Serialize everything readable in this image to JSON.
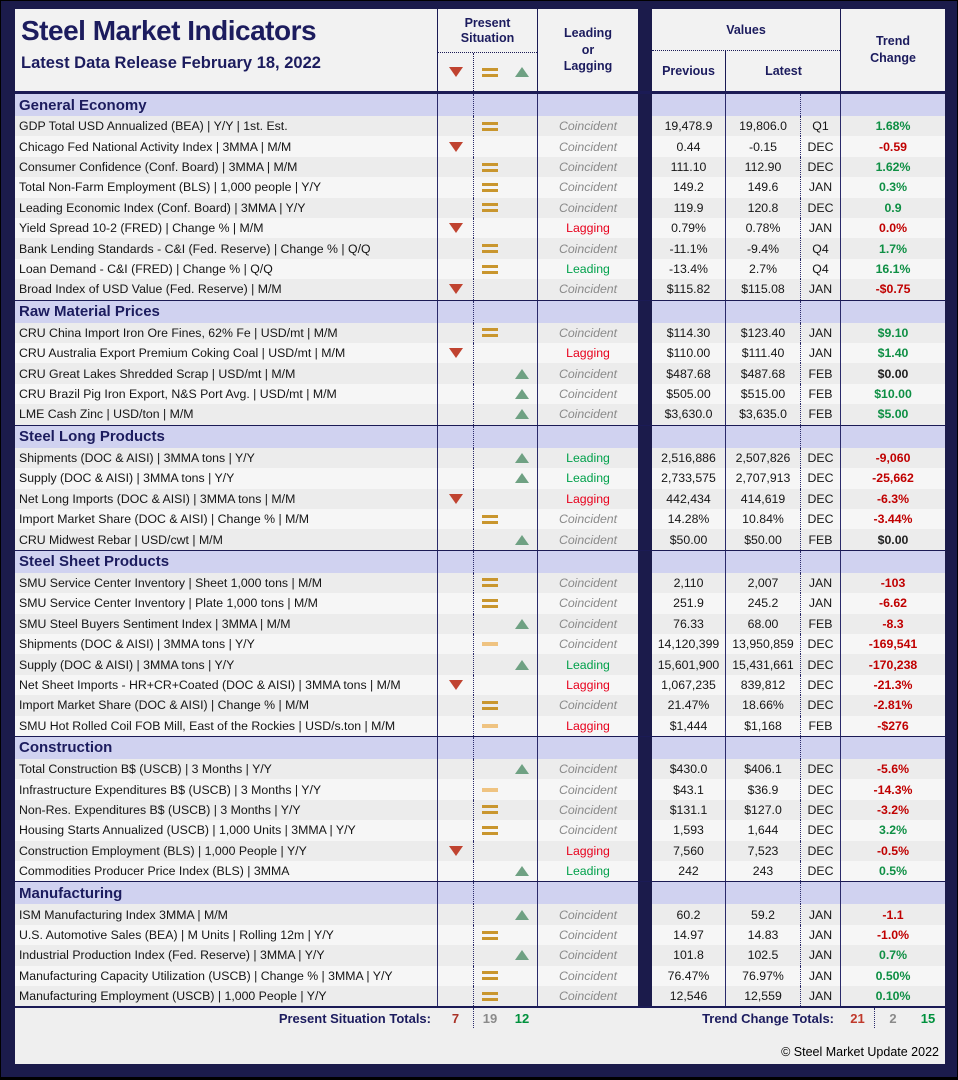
{
  "header": {
    "title": "Steel Market Indicators",
    "subtitle": "Latest Data Release February 18, 2022",
    "col_present_situation": "Present Situation",
    "col_leadlag_lines": [
      "Leading",
      "or",
      "Lagging"
    ],
    "col_values": "Values",
    "col_previous": "Previous",
    "col_latest": "Latest",
    "col_trend_lines": [
      "Trend",
      "Change"
    ],
    "symbol_icons": [
      "down-triangle-icon",
      "equals-icon",
      "up-triangle-icon"
    ]
  },
  "colors": {
    "navy": "#1B1B4B",
    "section_band": "#D0D2F0",
    "down_triangle": "#C04330",
    "up_triangle": "#6FA183",
    "equals_icon": "#C9962E",
    "dash_icon": "#EFC381",
    "coincident_text": "#8A8A8A",
    "leading_text": "#00A14B",
    "lagging_text": "#E8001C",
    "trend_positive": "#0E8F44",
    "trend_negative": "#C00000"
  },
  "sections": [
    {
      "title": "General Economy",
      "rows": [
        {
          "name": "GDP Total USD Annualized (BEA) | Y/Y | 1st. Est.",
          "situation": "equals",
          "leadlag": "Coincident",
          "previous": "19,478.9",
          "latest": "19,806.0",
          "period": "Q1",
          "trend": "1.68%",
          "trend_color": "green"
        },
        {
          "name": "Chicago Fed National Activity Index | 3MMA | M/M",
          "situation": "down",
          "leadlag": "Coincident",
          "previous": "0.44",
          "latest": "-0.15",
          "period": "DEC",
          "trend": "-0.59",
          "trend_color": "red"
        },
        {
          "name": "Consumer Confidence (Conf. Board) | 3MMA | M/M",
          "situation": "equals",
          "leadlag": "Coincident",
          "previous": "111.10",
          "latest": "112.90",
          "period": "DEC",
          "trend": "1.62%",
          "trend_color": "green"
        },
        {
          "name": "Total Non-Farm Employment (BLS) | 1,000 people | Y/Y",
          "situation": "equals",
          "leadlag": "Coincident",
          "previous": "149.2",
          "latest": "149.6",
          "period": "JAN",
          "trend": "0.3%",
          "trend_color": "green"
        },
        {
          "name": "Leading Economic Index (Conf. Board) | 3MMA | Y/Y",
          "situation": "equals",
          "leadlag": "Coincident",
          "previous": "119.9",
          "latest": "120.8",
          "period": "DEC",
          "trend": "0.9",
          "trend_color": "green"
        },
        {
          "name": "Yield Spread 10-2 (FRED) | Change % | M/M",
          "situation": "down",
          "leadlag": "Lagging",
          "previous": "0.79%",
          "latest": "0.78%",
          "period": "JAN",
          "trend": "0.0%",
          "trend_color": "red"
        },
        {
          "name": "Bank Lending Standards - C&I (Fed. Reserve) | Change % | Q/Q",
          "situation": "equals",
          "leadlag": "Coincident",
          "previous": "-11.1%",
          "latest": "-9.4%",
          "period": "Q4",
          "trend": "1.7%",
          "trend_color": "green"
        },
        {
          "name": "Loan Demand - C&I (FRED) | Change % | Q/Q",
          "situation": "equals",
          "leadlag": "Leading",
          "previous": "-13.4%",
          "latest": "2.7%",
          "period": "Q4",
          "trend": "16.1%",
          "trend_color": "green"
        },
        {
          "name": "Broad Index of USD Value (Fed. Reserve) | M/M",
          "situation": "down",
          "leadlag": "Coincident",
          "previous": "$115.82",
          "latest": "$115.08",
          "period": "JAN",
          "trend": "-$0.75",
          "trend_color": "red"
        }
      ]
    },
    {
      "title": "Raw Material Prices",
      "rows": [
        {
          "name": "CRU China Import Iron Ore Fines, 62% Fe | USD/mt | M/M",
          "situation": "equals",
          "leadlag": "Coincident",
          "previous": "$114.30",
          "latest": "$123.40",
          "period": "JAN",
          "trend": "$9.10",
          "trend_color": "green"
        },
        {
          "name": "CRU Australia Export Premium Coking Coal | USD/mt | M/M",
          "situation": "down",
          "leadlag": "Lagging",
          "previous": "$110.00",
          "latest": "$111.40",
          "period": "JAN",
          "trend": "$1.40",
          "trend_color": "green"
        },
        {
          "name": "CRU Great Lakes Shredded Scrap | USD/mt | M/M",
          "situation": "up",
          "leadlag": "Coincident",
          "previous": "$487.68",
          "latest": "$487.68",
          "period": "FEB",
          "trend": "$0.00",
          "trend_color": "black"
        },
        {
          "name": "CRU Brazil Pig Iron Export, N&S Port Avg. | USD/mt | M/M",
          "situation": "up",
          "leadlag": "Coincident",
          "previous": "$505.00",
          "latest": "$515.00",
          "period": "FEB",
          "trend": "$10.00",
          "trend_color": "green"
        },
        {
          "name": "LME Cash Zinc | USD/ton | M/M",
          "situation": "up",
          "leadlag": "Coincident",
          "previous": "$3,630.0",
          "latest": "$3,635.0",
          "period": "FEB",
          "trend": "$5.00",
          "trend_color": "green"
        }
      ]
    },
    {
      "title": "Steel Long Products",
      "rows": [
        {
          "name": "Shipments (DOC & AISI) | 3MMA tons | Y/Y",
          "situation": "up",
          "leadlag": "Leading",
          "previous": "2,516,886",
          "latest": "2,507,826",
          "period": "DEC",
          "trend": "-9,060",
          "trend_color": "red"
        },
        {
          "name": "Supply (DOC & AISI) | 3MMA tons | Y/Y",
          "situation": "up",
          "leadlag": "Leading",
          "previous": "2,733,575",
          "latest": "2,707,913",
          "period": "DEC",
          "trend": "-25,662",
          "trend_color": "red"
        },
        {
          "name": "Net Long Imports (DOC & AISI) | 3MMA tons | M/M",
          "situation": "down",
          "leadlag": "Lagging",
          "previous": "442,434",
          "latest": "414,619",
          "period": "DEC",
          "trend": "-6.3%",
          "trend_color": "red"
        },
        {
          "name": "Import Market Share (DOC & AISI) | Change % | M/M",
          "situation": "equals",
          "leadlag": "Coincident",
          "previous": "14.28%",
          "latest": "10.84%",
          "period": "DEC",
          "trend": "-3.44%",
          "trend_color": "red"
        },
        {
          "name": "CRU Midwest Rebar | USD/cwt | M/M",
          "situation": "up",
          "leadlag": "Coincident",
          "previous": "$50.00",
          "latest": "$50.00",
          "period": "FEB",
          "trend": "$0.00",
          "trend_color": "black"
        }
      ]
    },
    {
      "title": "Steel Sheet Products",
      "rows": [
        {
          "name": "SMU Service Center Inventory | Sheet 1,000 tons | M/M",
          "situation": "equals",
          "leadlag": "Coincident",
          "previous": "2,110",
          "latest": "2,007",
          "period": "JAN",
          "trend": "-103",
          "trend_color": "red"
        },
        {
          "name": "SMU Service Center Inventory | Plate 1,000 tons | M/M",
          "situation": "equals",
          "leadlag": "Coincident",
          "previous": "251.9",
          "latest": "245.2",
          "period": "JAN",
          "trend": "-6.62",
          "trend_color": "red"
        },
        {
          "name": "SMU Steel Buyers Sentiment Index | 3MMA | M/M",
          "situation": "up",
          "leadlag": "Coincident",
          "previous": "76.33",
          "latest": "68.00",
          "period": "FEB",
          "trend": "-8.3",
          "trend_color": "red"
        },
        {
          "name": "Shipments (DOC & AISI) | 3MMA tons | Y/Y",
          "situation": "dash",
          "leadlag": "Coincident",
          "previous": "14,120,399",
          "latest": "13,950,859",
          "period": "DEC",
          "trend": "-169,541",
          "trend_color": "red"
        },
        {
          "name": "Supply (DOC & AISI) | 3MMA tons | Y/Y",
          "situation": "up",
          "leadlag": "Leading",
          "previous": "15,601,900",
          "latest": "15,431,661",
          "period": "DEC",
          "trend": "-170,238",
          "trend_color": "red"
        },
        {
          "name": "Net Sheet Imports - HR+CR+Coated (DOC & AISI) | 3MMA tons | M/M",
          "situation": "down",
          "leadlag": "Lagging",
          "previous": "1,067,235",
          "latest": "839,812",
          "period": "DEC",
          "trend": "-21.3%",
          "trend_color": "red"
        },
        {
          "name": "Import Market Share (DOC & AISI) | Change % | M/M",
          "situation": "equals",
          "leadlag": "Coincident",
          "previous": "21.47%",
          "latest": "18.66%",
          "period": "DEC",
          "trend": "-2.81%",
          "trend_color": "red"
        },
        {
          "name": "SMU Hot Rolled Coil FOB Mill, East of the Rockies | USD/s.ton | M/M",
          "situation": "dash",
          "leadlag": "Lagging",
          "previous": "$1,444",
          "latest": "$1,168",
          "period": "FEB",
          "trend": "-$276",
          "trend_color": "red"
        }
      ]
    },
    {
      "title": "Construction",
      "rows": [
        {
          "name": "Total Construction B$ (USCB) | 3 Months | Y/Y",
          "situation": "up",
          "leadlag": "Coincident",
          "previous": "$430.0",
          "latest": "$406.1",
          "period": "DEC",
          "trend": "-5.6%",
          "trend_color": "red"
        },
        {
          "name": "Infrastructure Expenditures B$ (USCB) | 3 Months | Y/Y",
          "situation": "dash",
          "leadlag": "Coincident",
          "previous": "$43.1",
          "latest": "$36.9",
          "period": "DEC",
          "trend": "-14.3%",
          "trend_color": "red"
        },
        {
          "name": "Non-Res. Expenditures B$ (USCB) | 3 Months | Y/Y",
          "situation": "equals",
          "leadlag": "Coincident",
          "previous": "$131.1",
          "latest": "$127.0",
          "period": "DEC",
          "trend": "-3.2%",
          "trend_color": "red"
        },
        {
          "name": "Housing Starts Annualized (USCB) | 1,000 Units | 3MMA | Y/Y",
          "situation": "equals",
          "leadlag": "Coincident",
          "previous": "1,593",
          "latest": "1,644",
          "period": "DEC",
          "trend": "3.2%",
          "trend_color": "green"
        },
        {
          "name": "Construction Employment (BLS) | 1,000 People | Y/Y",
          "situation": "down",
          "leadlag": "Lagging",
          "previous": "7,560",
          "latest": "7,523",
          "period": "DEC",
          "trend": "-0.5%",
          "trend_color": "red"
        },
        {
          "name": "Commodities Producer Price Index (BLS) | 3MMA",
          "situation": "up",
          "leadlag": "Leading",
          "previous": "242",
          "latest": "243",
          "period": "DEC",
          "trend": "0.5%",
          "trend_color": "green"
        }
      ]
    },
    {
      "title": "Manufacturing",
      "rows": [
        {
          "name": "ISM Manufacturing Index 3MMA | M/M",
          "situation": "up",
          "leadlag": "Coincident",
          "previous": "60.2",
          "latest": "59.2",
          "period": "JAN",
          "trend": "-1.1",
          "trend_color": "red"
        },
        {
          "name": "U.S. Automotive Sales (BEA) | M Units | Rolling 12m | Y/Y",
          "situation": "equals",
          "leadlag": "Coincident",
          "previous": "14.97",
          "latest": "14.83",
          "period": "JAN",
          "trend": "-1.0%",
          "trend_color": "red"
        },
        {
          "name": "Industrial Production Index (Fed. Reserve) | 3MMA | Y/Y",
          "situation": "up",
          "leadlag": "Coincident",
          "previous": "101.8",
          "latest": "102.5",
          "period": "JAN",
          "trend": "0.7%",
          "trend_color": "green"
        },
        {
          "name": "Manufacturing Capacity Utilization (USCB) | Change % | 3MMA | Y/Y",
          "situation": "equals",
          "leadlag": "Coincident",
          "previous": "76.47%",
          "latest": "76.97%",
          "period": "JAN",
          "trend": "0.50%",
          "trend_color": "green"
        },
        {
          "name": "Manufacturing Employment (USCB) | 1,000 People | Y/Y",
          "situation": "equals",
          "leadlag": "Coincident",
          "previous": "12,546",
          "latest": "12,559",
          "period": "JAN",
          "trend": "0.10%",
          "trend_color": "green"
        }
      ]
    }
  ],
  "footer": {
    "present_situation_totals_label": "Present Situation Totals:",
    "present_situation_totals": {
      "down": "7",
      "neutral": "19",
      "up": "12"
    },
    "trend_change_totals_label": "Trend Change Totals:",
    "trend_change_totals": {
      "down": "21",
      "neutral": "2",
      "up": "15"
    },
    "copyright": "© Steel Market Update 2022"
  }
}
